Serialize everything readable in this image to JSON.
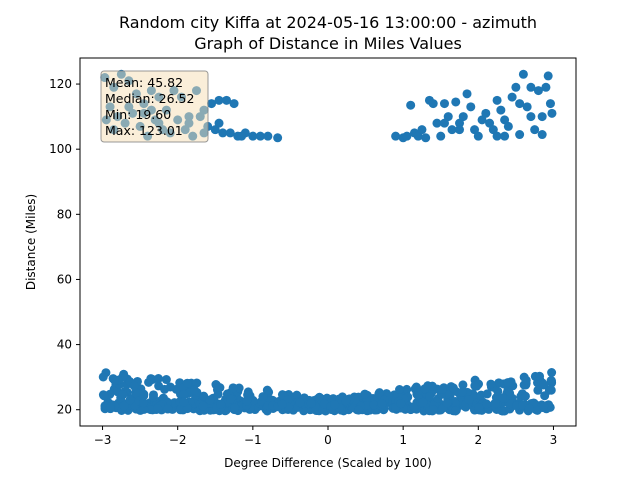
{
  "chart_data": {
    "type": "scatter",
    "title_lines": [
      "Random city Kiffa at 2024-05-16 13:00:00  - azimuth",
      "Graph of Distance in Miles Values"
    ],
    "xlabel": "Degree Difference (Scaled by 100)",
    "ylabel": "Distance (Miles)",
    "xlim": [
      -3.3,
      3.3
    ],
    "ylim": [
      15,
      128
    ],
    "xticks": [
      -3,
      -2,
      -1,
      0,
      1,
      2,
      3
    ],
    "yticks": [
      20,
      40,
      60,
      80,
      100,
      120
    ],
    "marker_color": "#1f77b4",
    "legend_box": {
      "placement": "top-left",
      "facecolor": "#f5deb3",
      "edgecolor": "#808080"
    },
    "stats": {
      "mean": "Mean: 45.82",
      "median": "Median: 26.52",
      "min": "Min: 19.60",
      "max": "Max: 123.01"
    },
    "points": [
      [
        -2.97,
        122
      ],
      [
        -2.85,
        119
      ],
      [
        -2.75,
        123
      ],
      [
        -2.65,
        121
      ],
      [
        -2.55,
        117
      ],
      [
        -2.45,
        114
      ],
      [
        -2.35,
        118
      ],
      [
        -2.25,
        116
      ],
      [
        -2.15,
        112
      ],
      [
        -2.05,
        118
      ],
      [
        -1.95,
        116
      ],
      [
        -1.85,
        110
      ],
      [
        -1.75,
        118
      ],
      [
        -1.65,
        112
      ],
      [
        -1.55,
        114
      ],
      [
        -1.45,
        115
      ],
      [
        -1.35,
        115
      ],
      [
        -1.25,
        114
      ],
      [
        -2.9,
        113
      ],
      [
        -2.8,
        110
      ],
      [
        -2.7,
        108
      ],
      [
        -2.6,
        111
      ],
      [
        -2.5,
        107
      ],
      [
        -2.4,
        104
      ],
      [
        -2.3,
        109
      ],
      [
        -2.2,
        106
      ],
      [
        -2.1,
        105
      ],
      [
        -2.0,
        109
      ],
      [
        -1.9,
        106
      ],
      [
        -1.8,
        104
      ],
      [
        -1.7,
        110
      ],
      [
        -1.6,
        107
      ],
      [
        -1.5,
        106
      ],
      [
        -1.4,
        105
      ],
      [
        -1.3,
        105
      ],
      [
        -1.2,
        104
      ],
      [
        -1.1,
        105
      ],
      [
        -1.0,
        104
      ],
      [
        -0.9,
        104
      ],
      [
        -0.8,
        104
      ],
      [
        -0.67,
        103.5
      ],
      [
        -1.45,
        108
      ],
      [
        -1.65,
        105
      ],
      [
        -1.85,
        108
      ],
      [
        -2.25,
        108
      ],
      [
        -2.45,
        111
      ],
      [
        -2.65,
        113
      ],
      [
        -2.85,
        106
      ],
      [
        -2.95,
        109
      ],
      [
        -2.35,
        112
      ],
      [
        -1.15,
        104
      ],
      [
        0.9,
        104
      ],
      [
        1.0,
        103.5
      ],
      [
        1.05,
        104
      ],
      [
        1.1,
        113.5
      ],
      [
        1.15,
        105
      ],
      [
        1.2,
        104
      ],
      [
        1.25,
        106
      ],
      [
        1.3,
        103.5
      ],
      [
        1.35,
        115
      ],
      [
        1.4,
        114
      ],
      [
        1.45,
        108
      ],
      [
        1.5,
        104
      ],
      [
        1.55,
        114
      ],
      [
        1.6,
        110
      ],
      [
        1.65,
        106
      ],
      [
        1.7,
        114.5
      ],
      [
        1.75,
        108
      ],
      [
        1.8,
        110
      ],
      [
        1.85,
        117
      ],
      [
        1.9,
        113
      ],
      [
        1.95,
        106
      ],
      [
        2.0,
        104
      ],
      [
        2.05,
        109
      ],
      [
        2.1,
        111
      ],
      [
        2.15,
        108
      ],
      [
        2.2,
        106
      ],
      [
        2.25,
        104
      ],
      [
        2.3,
        112
      ],
      [
        2.35,
        109
      ],
      [
        2.4,
        107
      ],
      [
        2.45,
        116
      ],
      [
        2.5,
        119
      ],
      [
        2.55,
        114
      ],
      [
        2.6,
        123
      ],
      [
        2.65,
        113
      ],
      [
        2.7,
        110
      ],
      [
        2.75,
        106
      ],
      [
        2.8,
        118
      ],
      [
        2.85,
        104.5
      ],
      [
        2.9,
        119
      ],
      [
        2.93,
        122.5
      ],
      [
        2.96,
        114
      ],
      [
        2.98,
        111
      ],
      [
        1.55,
        108
      ],
      [
        1.75,
        106
      ],
      [
        2.25,
        115
      ],
      [
        2.7,
        119
      ],
      [
        2.85,
        110
      ],
      [
        2.55,
        104.5
      ],
      [
        2.35,
        104
      ]
    ],
    "lower_band": {
      "description": "dense cluster of points between roughly 19.6 and 33.5 miles across the full x range",
      "ymin": 19.6,
      "ymax": 33.5
    }
  }
}
